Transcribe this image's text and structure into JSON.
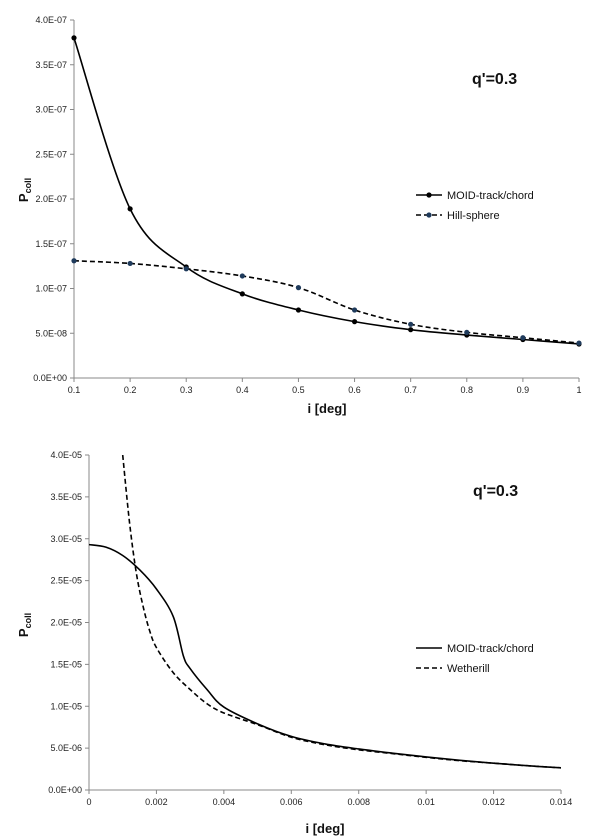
{
  "chart_data": [
    {
      "type": "line",
      "annotation": "q'=0.3",
      "xlabel": "i [deg]",
      "ylabel_main": "P",
      "ylabel_sub": "coll",
      "xlim": [
        0.1,
        1
      ],
      "ylim": [
        0,
        4e-07
      ],
      "x_ticks": [
        0.1,
        0.2,
        0.3,
        0.4,
        0.5,
        0.6,
        0.7,
        0.8,
        0.9,
        1
      ],
      "x_tick_labels": [
        "0.1",
        "0.2",
        "0.3",
        "0.4",
        "0.5",
        "0.6",
        "0.7",
        "0.8",
        "0.9",
        "1"
      ],
      "y_ticks": [
        0,
        5e-08,
        1e-07,
        1.5e-07,
        2e-07,
        2.5e-07,
        3e-07,
        3.5e-07,
        4e-07
      ],
      "y_tick_labels": [
        "0.0E+00",
        "5.0E-08",
        "1.0E-07",
        "1.5E-07",
        "2.0E-07",
        "2.5E-07",
        "3.0E-07",
        "3.5E-07",
        "4.0E-07"
      ],
      "legend_position": "right",
      "series": [
        {
          "name": "MOID-track/chord",
          "style": "solid",
          "markers": true,
          "color": "#000000",
          "marker_color": "#000000",
          "x": [
            0.1,
            0.2,
            0.3,
            0.4,
            0.5,
            0.6,
            0.7,
            0.8,
            0.9,
            1.0
          ],
          "y": [
            3.8e-07,
            1.89e-07,
            1.24e-07,
            9.4e-08,
            7.6e-08,
            6.3e-08,
            5.4e-08,
            4.8e-08,
            4.3e-08,
            3.8e-08
          ]
        },
        {
          "name": "Hill-sphere",
          "style": "dashed",
          "markers": true,
          "color": "#000000",
          "marker_color": "#1f3b5c",
          "x": [
            0.1,
            0.2,
            0.3,
            0.4,
            0.5,
            0.6,
            0.7,
            0.8,
            0.9,
            1.0
          ],
          "y": [
            1.31e-07,
            1.28e-07,
            1.22e-07,
            1.14e-07,
            1.01e-07,
            7.6e-08,
            6e-08,
            5.1e-08,
            4.5e-08,
            3.9e-08
          ]
        }
      ]
    },
    {
      "type": "line",
      "annotation": "q'=0.3",
      "xlabel": "i [deg]",
      "ylabel_main": "P",
      "ylabel_sub": "coll",
      "xlim": [
        0,
        0.014
      ],
      "ylim": [
        0,
        4e-05
      ],
      "x_ticks": [
        0,
        0.002,
        0.004,
        0.006,
        0.008,
        0.01,
        0.012,
        0.014
      ],
      "x_tick_labels": [
        "0",
        "0.002",
        "0.004",
        "0.006",
        "0.008",
        "0.01",
        "0.012",
        "0.014"
      ],
      "y_ticks": [
        0,
        5e-06,
        1e-05,
        1.5e-05,
        2e-05,
        2.5e-05,
        3e-05,
        3.5e-05,
        4e-05
      ],
      "y_tick_labels": [
        "0.0E+00",
        "5.0E-06",
        "1.0E-05",
        "1.5E-05",
        "2.0E-05",
        "2.5E-05",
        "3.0E-05",
        "3.5E-05",
        "4.0E-05"
      ],
      "legend_position": "right",
      "series": [
        {
          "name": "MOID-track/chord",
          "style": "solid",
          "markers": false,
          "color": "#000000",
          "x": [
            0,
            0.0005,
            0.001,
            0.0015,
            0.002,
            0.0025,
            0.0028,
            0.003,
            0.0035,
            0.004,
            0.005,
            0.006,
            0.007,
            0.008,
            0.009,
            0.01,
            0.011,
            0.012,
            0.013,
            0.014
          ],
          "y": [
            2.93e-05,
            2.9e-05,
            2.8e-05,
            2.63e-05,
            2.4e-05,
            2.07e-05,
            1.6e-05,
            1.45e-05,
            1.2e-05,
            9.9e-06,
            7.9e-06,
            6.4e-06,
            5.5e-06,
            4.9e-06,
            4.4e-06,
            3.95e-06,
            3.55e-06,
            3.2e-06,
            2.9e-06,
            2.65e-06
          ]
        },
        {
          "name": "Wetherill",
          "style": "dashed",
          "markers": false,
          "color": "#000000",
          "x": [
            0.001,
            0.0012,
            0.0014,
            0.0016,
            0.0018,
            0.002,
            0.0025,
            0.003,
            0.0035,
            0.004,
            0.005,
            0.006,
            0.007,
            0.008,
            0.009,
            0.01,
            0.011,
            0.012,
            0.013,
            0.014
          ],
          "y": [
            4e-05,
            3.2e-05,
            2.6e-05,
            2.2e-05,
            1.9e-05,
            1.7e-05,
            1.4e-05,
            1.2e-05,
            1.03e-05,
            9.2e-06,
            7.8e-06,
            6.3e-06,
            5.4e-06,
            4.8e-06,
            4.35e-06,
            3.9e-06,
            3.5e-06,
            3.2e-06,
            2.9e-06,
            2.65e-06
          ]
        }
      ]
    }
  ]
}
